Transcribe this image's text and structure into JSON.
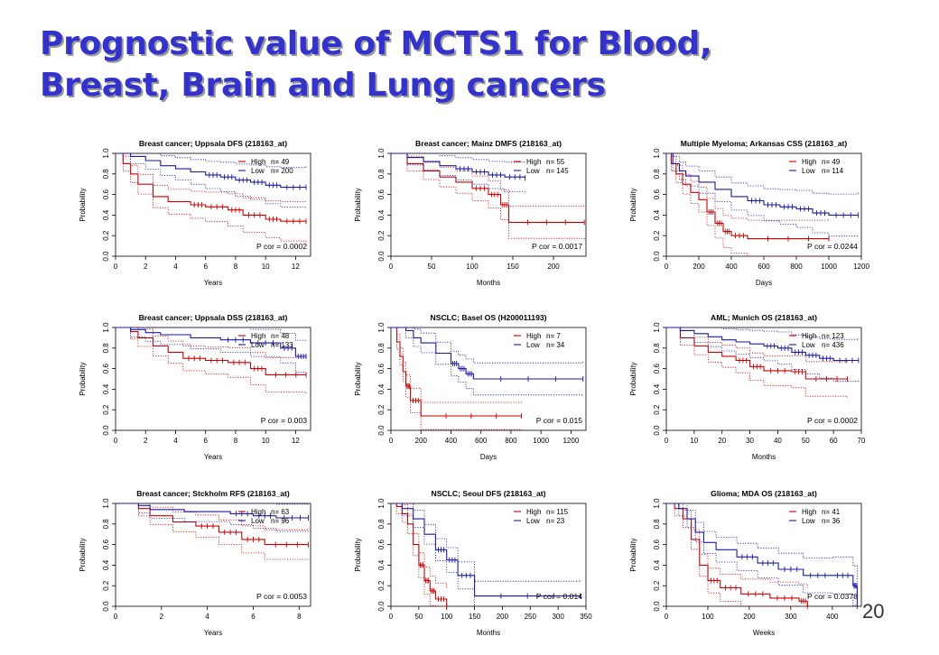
{
  "slide": {
    "title_line1": "Prognostic value of MCTS1 for Blood,",
    "title_line2": "Breast, Brain and Lung cancers",
    "page_number": "20"
  },
  "colors": {
    "high": "#cc0000",
    "low": "#1a1aa6",
    "title": "#3333cc"
  },
  "chart_data": [
    {
      "type": "line",
      "title": "Breast cancer; Uppsala DFS (218163_at)",
      "xlabel": "Years",
      "ylabel": "Probability",
      "xlim": [
        0,
        13
      ],
      "ylim": [
        0,
        1
      ],
      "xticks": [
        0,
        2,
        4,
        6,
        8,
        10,
        12
      ],
      "yticks": [
        0.0,
        0.2,
        0.4,
        0.6,
        0.8,
        1.0
      ],
      "legend": "top-right",
      "pvalue": "P cor = 0.0002",
      "series": [
        {
          "name": "High",
          "n": "n= 49",
          "points": [
            [
              0,
              1
            ],
            [
              0.5,
              0.9
            ],
            [
              1,
              0.8
            ],
            [
              1.5,
              0.7
            ],
            [
              2.5,
              0.58
            ],
            [
              3.5,
              0.53
            ],
            [
              5,
              0.5
            ],
            [
              6,
              0.48
            ],
            [
              7.5,
              0.45
            ],
            [
              8.5,
              0.4
            ],
            [
              10,
              0.36
            ],
            [
              11,
              0.34
            ],
            [
              12.7,
              0.34
            ]
          ]
        },
        {
          "name": "Low",
          "n": "n= 200",
          "points": [
            [
              0,
              1
            ],
            [
              1,
              0.97
            ],
            [
              2,
              0.93
            ],
            [
              3,
              0.88
            ],
            [
              4,
              0.85
            ],
            [
              5,
              0.82
            ],
            [
              6,
              0.79
            ],
            [
              7,
              0.77
            ],
            [
              8,
              0.74
            ],
            [
              9,
              0.72
            ],
            [
              10,
              0.69
            ],
            [
              11,
              0.67
            ],
            [
              12.7,
              0.67
            ]
          ]
        }
      ]
    },
    {
      "type": "line",
      "title": "Breast cancer; Mainz DMFS (218163_at)",
      "xlabel": "Months",
      "ylabel": "Probability",
      "xlim": [
        0,
        240
      ],
      "ylim": [
        0,
        1
      ],
      "xticks": [
        0,
        50,
        100,
        150,
        200
      ],
      "yticks": [
        0.0,
        0.2,
        0.4,
        0.6,
        0.8,
        1.0
      ],
      "legend": "top-right",
      "pvalue": "P cor = 0.0017",
      "series": [
        {
          "name": "High",
          "n": "n= 55",
          "points": [
            [
              0,
              1
            ],
            [
              20,
              0.9
            ],
            [
              40,
              0.83
            ],
            [
              60,
              0.77
            ],
            [
              80,
              0.72
            ],
            [
              100,
              0.66
            ],
            [
              120,
              0.6
            ],
            [
              135,
              0.5
            ],
            [
              145,
              0.33
            ],
            [
              238,
              0.33
            ]
          ]
        },
        {
          "name": "Low",
          "n": "n= 145",
          "points": [
            [
              0,
              1
            ],
            [
              20,
              0.96
            ],
            [
              40,
              0.92
            ],
            [
              60,
              0.88
            ],
            [
              80,
              0.85
            ],
            [
              100,
              0.82
            ],
            [
              120,
              0.79
            ],
            [
              140,
              0.77
            ],
            [
              165,
              0.76
            ]
          ]
        }
      ]
    },
    {
      "type": "line",
      "title": "Multiple Myeloma; Arkansas CSS (218163_at)",
      "xlabel": "Days",
      "ylabel": "Probability",
      "xlim": [
        0,
        1200
      ],
      "ylim": [
        0,
        1
      ],
      "xticks": [
        0,
        200,
        400,
        600,
        800,
        1000,
        1200
      ],
      "yticks": [
        0.0,
        0.2,
        0.4,
        0.6,
        0.8,
        1.0
      ],
      "legend": "top-right",
      "pvalue": "P cor = 0.0244",
      "series": [
        {
          "name": "High",
          "n": "n= 49",
          "points": [
            [
              0,
              1
            ],
            [
              30,
              0.9
            ],
            [
              60,
              0.8
            ],
            [
              100,
              0.7
            ],
            [
              150,
              0.62
            ],
            [
              200,
              0.55
            ],
            [
              250,
              0.43
            ],
            [
              300,
              0.32
            ],
            [
              350,
              0.24
            ],
            [
              400,
              0.2
            ],
            [
              500,
              0.17
            ],
            [
              1000,
              0.17
            ]
          ]
        },
        {
          "name": "Low",
          "n": "n= 114",
          "points": [
            [
              0,
              1
            ],
            [
              40,
              0.9
            ],
            [
              80,
              0.83
            ],
            [
              120,
              0.78
            ],
            [
              200,
              0.72
            ],
            [
              300,
              0.65
            ],
            [
              400,
              0.58
            ],
            [
              500,
              0.54
            ],
            [
              600,
              0.5
            ],
            [
              700,
              0.48
            ],
            [
              800,
              0.46
            ],
            [
              900,
              0.42
            ],
            [
              1000,
              0.4
            ],
            [
              1180,
              0.4
            ]
          ]
        }
      ]
    },
    {
      "type": "line",
      "title": "Breast cancer; Uppsala DSS (218163_at)",
      "xlabel": "Years",
      "ylabel": "Probability",
      "xlim": [
        0,
        13
      ],
      "ylim": [
        0,
        1
      ],
      "xticks": [
        0,
        2,
        4,
        6,
        8,
        10,
        12
      ],
      "yticks": [
        0.0,
        0.2,
        0.4,
        0.6,
        0.8,
        1.0
      ],
      "legend": "top-right",
      "pvalue": "P cor = 0.003",
      "series": [
        {
          "name": "High",
          "n": "n= 48",
          "points": [
            [
              0,
              1
            ],
            [
              1,
              0.96
            ],
            [
              1.5,
              0.9
            ],
            [
              2.5,
              0.82
            ],
            [
              3.5,
              0.76
            ],
            [
              4.5,
              0.7
            ],
            [
              6,
              0.68
            ],
            [
              7.5,
              0.66
            ],
            [
              9,
              0.6
            ],
            [
              10,
              0.54
            ],
            [
              12.7,
              0.54
            ]
          ]
        },
        {
          "name": "Low",
          "n": "n= 133",
          "points": [
            [
              0,
              1
            ],
            [
              1,
              0.98
            ],
            [
              2,
              0.95
            ],
            [
              3,
              0.93
            ],
            [
              5,
              0.9
            ],
            [
              7,
              0.88
            ],
            [
              9,
              0.85
            ],
            [
              11,
              0.8
            ],
            [
              12,
              0.72
            ],
            [
              12.7,
              0.72
            ]
          ]
        }
      ]
    },
    {
      "type": "line",
      "title": "NSCLC; Basel OS (H200011193)",
      "xlabel": "Days",
      "ylabel": "Probability",
      "xlim": [
        0,
        1300
      ],
      "ylim": [
        0,
        1
      ],
      "xticks": [
        0,
        200,
        400,
        600,
        800,
        1000,
        1200
      ],
      "yticks": [
        0.0,
        0.2,
        0.4,
        0.6,
        0.8,
        1.0
      ],
      "legend": "top-right",
      "pvalue": "P cor = 0.015",
      "series": [
        {
          "name": "High",
          "n": "n= 7",
          "points": [
            [
              0,
              1
            ],
            [
              40,
              0.86
            ],
            [
              60,
              0.72
            ],
            [
              80,
              0.57
            ],
            [
              100,
              0.43
            ],
            [
              130,
              0.29
            ],
            [
              200,
              0.14
            ],
            [
              870,
              0.14
            ]
          ]
        },
        {
          "name": "Low",
          "n": "n= 34",
          "points": [
            [
              0,
              1
            ],
            [
              100,
              0.97
            ],
            [
              150,
              0.9
            ],
            [
              200,
              0.85
            ],
            [
              300,
              0.75
            ],
            [
              400,
              0.65
            ],
            [
              450,
              0.6
            ],
            [
              500,
              0.55
            ],
            [
              550,
              0.5
            ],
            [
              1280,
              0.5
            ]
          ]
        }
      ]
    },
    {
      "type": "line",
      "title": "AML; Munich OS (218163_at)",
      "xlabel": "Months",
      "ylabel": "Probability",
      "xlim": [
        0,
        70
      ],
      "ylim": [
        0,
        1
      ],
      "xticks": [
        0,
        10,
        20,
        30,
        40,
        50,
        60,
        70
      ],
      "yticks": [
        0.0,
        0.2,
        0.4,
        0.6,
        0.8,
        1.0
      ],
      "legend": "top-right",
      "pvalue": "P cor = 0.0002",
      "series": [
        {
          "name": "High",
          "n": "n= 123",
          "points": [
            [
              0,
              1
            ],
            [
              5,
              0.9
            ],
            [
              10,
              0.82
            ],
            [
              15,
              0.76
            ],
            [
              20,
              0.72
            ],
            [
              25,
              0.68
            ],
            [
              30,
              0.62
            ],
            [
              35,
              0.58
            ],
            [
              45,
              0.57
            ],
            [
              50,
              0.5
            ],
            [
              65,
              0.5
            ]
          ]
        },
        {
          "name": "Low",
          "n": "n= 436",
          "points": [
            [
              0,
              1
            ],
            [
              5,
              0.97
            ],
            [
              10,
              0.94
            ],
            [
              15,
              0.91
            ],
            [
              20,
              0.88
            ],
            [
              25,
              0.86
            ],
            [
              30,
              0.84
            ],
            [
              35,
              0.82
            ],
            [
              40,
              0.8
            ],
            [
              45,
              0.76
            ],
            [
              50,
              0.73
            ],
            [
              55,
              0.7
            ],
            [
              60,
              0.68
            ],
            [
              69,
              0.68
            ]
          ]
        }
      ]
    },
    {
      "type": "line",
      "title": "Breast cancer; Stckholm RFS (218163_at)",
      "xlabel": "Years",
      "ylabel": "Probability",
      "xlim": [
        0,
        8.5
      ],
      "ylim": [
        0,
        1
      ],
      "xticks": [
        0,
        2,
        4,
        6,
        8
      ],
      "yticks": [
        0.0,
        0.2,
        0.4,
        0.6,
        0.8,
        1.0
      ],
      "legend": "top-right",
      "pvalue": "P cor = 0.0053",
      "series": [
        {
          "name": "High",
          "n": "n= 63",
          "points": [
            [
              0,
              1
            ],
            [
              1,
              0.95
            ],
            [
              1.5,
              0.88
            ],
            [
              2.5,
              0.82
            ],
            [
              3.5,
              0.78
            ],
            [
              4.5,
              0.72
            ],
            [
              5.5,
              0.65
            ],
            [
              6.5,
              0.6
            ],
            [
              8.4,
              0.6
            ]
          ]
        },
        {
          "name": "Low",
          "n": "n= 96",
          "points": [
            [
              0,
              1
            ],
            [
              1,
              0.98
            ],
            [
              1.5,
              0.94
            ],
            [
              3,
              0.92
            ],
            [
              5,
              0.9
            ],
            [
              6,
              0.88
            ],
            [
              7,
              0.86
            ],
            [
              8.4,
              0.86
            ]
          ]
        }
      ]
    },
    {
      "type": "line",
      "title": "NSCLC; Seoul DFS (218163_at)",
      "xlabel": "Months",
      "ylabel": "Probability",
      "xlim": [
        0,
        350
      ],
      "ylim": [
        0,
        1
      ],
      "xticks": [
        0,
        50,
        100,
        150,
        200,
        250,
        300,
        350
      ],
      "yticks": [
        0.0,
        0.2,
        0.4,
        0.6,
        0.8,
        1.0
      ],
      "legend": "top-right",
      "pvalue": "P cor = 0.014",
      "series": [
        {
          "name": "High",
          "n": "n= 115",
          "points": [
            [
              0,
              1
            ],
            [
              10,
              0.97
            ],
            [
              20,
              0.9
            ],
            [
              30,
              0.8
            ],
            [
              40,
              0.6
            ],
            [
              50,
              0.4
            ],
            [
              60,
              0.25
            ],
            [
              70,
              0.15
            ],
            [
              80,
              0.07
            ],
            [
              100,
              0
            ]
          ]
        },
        {
          "name": "Low",
          "n": "n= 23",
          "points": [
            [
              0,
              1
            ],
            [
              20,
              0.95
            ],
            [
              40,
              0.85
            ],
            [
              60,
              0.7
            ],
            [
              80,
              0.55
            ],
            [
              100,
              0.45
            ],
            [
              120,
              0.3
            ],
            [
              150,
              0.1
            ],
            [
              340,
              0.1
            ]
          ]
        }
      ]
    },
    {
      "type": "line",
      "title": "Glioma; MDA OS (218163_at)",
      "xlabel": "Weeks",
      "ylabel": "Probability",
      "xlim": [
        0,
        470
      ],
      "ylim": [
        0,
        1
      ],
      "xticks": [
        0,
        100,
        200,
        300,
        400
      ],
      "yticks": [
        0.0,
        0.2,
        0.4,
        0.6,
        0.8,
        1.0
      ],
      "legend": "top-right",
      "pvalue": "P cor = 0.0378",
      "series": [
        {
          "name": "High",
          "n": "n= 41",
          "points": [
            [
              0,
              1
            ],
            [
              20,
              0.95
            ],
            [
              40,
              0.85
            ],
            [
              60,
              0.65
            ],
            [
              80,
              0.4
            ],
            [
              100,
              0.25
            ],
            [
              130,
              0.18
            ],
            [
              180,
              0.12
            ],
            [
              250,
              0.08
            ],
            [
              320,
              0.05
            ],
            [
              340,
              0
            ]
          ]
        },
        {
          "name": "Low",
          "n": "n= 36",
          "points": [
            [
              0,
              1
            ],
            [
              30,
              0.95
            ],
            [
              50,
              0.85
            ],
            [
              70,
              0.72
            ],
            [
              90,
              0.62
            ],
            [
              120,
              0.55
            ],
            [
              170,
              0.48
            ],
            [
              220,
              0.42
            ],
            [
              270,
              0.36
            ],
            [
              330,
              0.3
            ],
            [
              400,
              0.3
            ],
            [
              450,
              0.2
            ],
            [
              460,
              0
            ]
          ]
        }
      ]
    }
  ]
}
